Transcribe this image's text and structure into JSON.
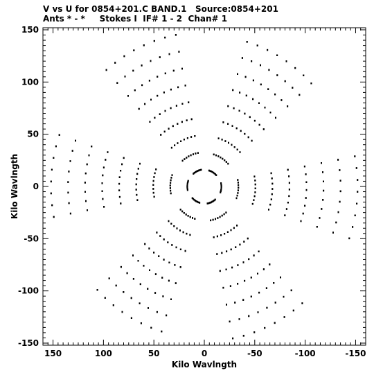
{
  "header": {
    "line1": "V vs U for 0854+201.C BAND.1   Source:0854+201",
    "line2": "Ants * - *     Stokes I  IF# 1 - 2  Chan# 1"
  },
  "chart_data": {
    "type": "scatter",
    "title": "V vs U for 0854+201.C BAND.1   Source:0854+201",
    "subtitle": "Ants * - *     Stokes I  IF# 1 - 2  Chan# 1",
    "xlabel": "Kilo Wavlngth",
    "ylabel": "Kilo Wavlngth",
    "xlim": [
      160,
      -160
    ],
    "ylim": [
      -152,
      152
    ],
    "x_reversed": true,
    "xticks": [
      150,
      100,
      50,
      0,
      -50,
      -100,
      -150
    ],
    "yticks": [
      150,
      100,
      50,
      0,
      -50,
      -100,
      -150
    ],
    "grid": false,
    "arms": [
      {
        "angle_deg": 64,
        "length": 148
      },
      {
        "angle_deg": 122,
        "length": 145
      },
      {
        "angle_deg": 184,
        "length": 152
      },
      {
        "angle_deg": 244,
        "length": 148
      },
      {
        "angle_deg": 302,
        "length": 145
      },
      {
        "angle_deg": 4,
        "length": 152
      }
    ],
    "stations_per_arm": 9,
    "hour_angle_span_deg": 30,
    "samples_per_track": 8
  }
}
